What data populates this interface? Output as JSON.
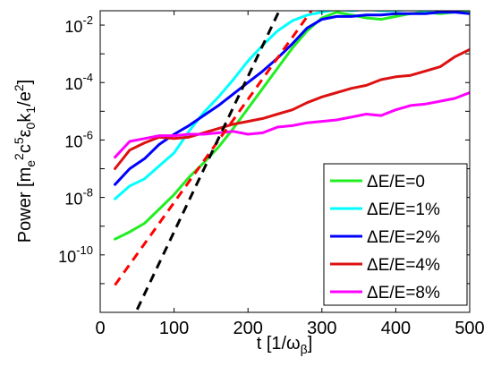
{
  "chart_data": {
    "type": "line",
    "xlabel": "t [1/ω_β]",
    "ylabel": "Power [m_e^2 c^5 ε_0 k_1/e^2]",
    "xlim": [
      0,
      500
    ],
    "ylim_log10": [
      -12,
      -1.5
    ],
    "yscale": "log",
    "x_ticks": [
      0,
      100,
      200,
      300,
      400,
      500
    ],
    "y_ticks": [
      {
        "exp": -10,
        "label": "10",
        "sup": "-10"
      },
      {
        "exp": -8,
        "label": "10",
        "sup": "-8"
      },
      {
        "exp": -6,
        "label": "10",
        "sup": "-6"
      },
      {
        "exp": -4,
        "label": "10",
        "sup": "-4"
      },
      {
        "exp": -2,
        "label": "10",
        "sup": "-2"
      }
    ],
    "legend_position": "lower-right",
    "series": [
      {
        "name": "ΔE/E=0",
        "color": "#22ee22",
        "points": [
          [
            20,
            -9.45
          ],
          [
            40,
            -9.2
          ],
          [
            60,
            -8.9
          ],
          [
            80,
            -8.4
          ],
          [
            100,
            -7.9
          ],
          [
            120,
            -7.3
          ],
          [
            140,
            -6.8
          ],
          [
            160,
            -6.25
          ],
          [
            180,
            -5.6
          ],
          [
            200,
            -4.9
          ],
          [
            220,
            -4.2
          ],
          [
            240,
            -3.5
          ],
          [
            260,
            -2.8
          ],
          [
            280,
            -2.2
          ],
          [
            300,
            -1.75
          ],
          [
            320,
            -1.55
          ],
          [
            340,
            -1.65
          ],
          [
            360,
            -1.75
          ],
          [
            380,
            -1.8
          ],
          [
            400,
            -1.7
          ],
          [
            420,
            -1.6
          ],
          [
            440,
            -1.55
          ],
          [
            460,
            -1.6
          ],
          [
            480,
            -1.55
          ],
          [
            500,
            -1.5
          ]
        ]
      },
      {
        "name": "ΔE/E=1%",
        "color": "#00ffff",
        "points": [
          [
            20,
            -8.05
          ],
          [
            40,
            -7.6
          ],
          [
            60,
            -7.35
          ],
          [
            80,
            -6.9
          ],
          [
            100,
            -6.45
          ],
          [
            120,
            -5.7
          ],
          [
            140,
            -5.05
          ],
          [
            160,
            -4.5
          ],
          [
            180,
            -3.9
          ],
          [
            200,
            -3.25
          ],
          [
            220,
            -2.7
          ],
          [
            240,
            -2.2
          ],
          [
            260,
            -1.85
          ],
          [
            280,
            -1.65
          ],
          [
            300,
            -1.55
          ],
          [
            320,
            -1.45
          ],
          [
            340,
            -1.5
          ],
          [
            360,
            -1.45
          ],
          [
            380,
            -1.5
          ],
          [
            400,
            -1.5
          ],
          [
            420,
            -1.45
          ],
          [
            440,
            -1.5
          ],
          [
            460,
            -1.45
          ],
          [
            480,
            -1.45
          ],
          [
            500,
            -1.4
          ]
        ]
      },
      {
        "name": "ΔE/E=2%",
        "color": "#0000ff",
        "points": [
          [
            20,
            -7.55
          ],
          [
            40,
            -7.0
          ],
          [
            60,
            -6.65
          ],
          [
            80,
            -6.15
          ],
          [
            100,
            -5.8
          ],
          [
            120,
            -5.5
          ],
          [
            140,
            -5.15
          ],
          [
            160,
            -4.8
          ],
          [
            180,
            -4.4
          ],
          [
            200,
            -4.0
          ],
          [
            220,
            -3.6
          ],
          [
            240,
            -3.15
          ],
          [
            260,
            -2.65
          ],
          [
            280,
            -2.1
          ],
          [
            300,
            -1.8
          ],
          [
            320,
            -1.7
          ],
          [
            340,
            -1.7
          ],
          [
            360,
            -1.65
          ],
          [
            380,
            -1.65
          ],
          [
            400,
            -1.6
          ],
          [
            420,
            -1.6
          ],
          [
            440,
            -1.6
          ],
          [
            460,
            -1.55
          ],
          [
            480,
            -1.55
          ],
          [
            500,
            -1.6
          ]
        ]
      },
      {
        "name": "ΔE/E=4%",
        "color": "#dd1111",
        "points": [
          [
            20,
            -7.0
          ],
          [
            40,
            -6.35
          ],
          [
            60,
            -6.1
          ],
          [
            80,
            -5.9
          ],
          [
            100,
            -5.95
          ],
          [
            120,
            -5.9
          ],
          [
            140,
            -5.75
          ],
          [
            160,
            -5.6
          ],
          [
            180,
            -5.45
          ],
          [
            200,
            -5.35
          ],
          [
            220,
            -5.25
          ],
          [
            240,
            -5.1
          ],
          [
            260,
            -4.95
          ],
          [
            280,
            -4.7
          ],
          [
            300,
            -4.5
          ],
          [
            320,
            -4.35
          ],
          [
            340,
            -4.2
          ],
          [
            360,
            -4.1
          ],
          [
            380,
            -3.9
          ],
          [
            400,
            -3.8
          ],
          [
            420,
            -3.75
          ],
          [
            440,
            -3.6
          ],
          [
            460,
            -3.45
          ],
          [
            480,
            -3.1
          ],
          [
            500,
            -2.85
          ]
        ]
      },
      {
        "name": "ΔE/E=8%",
        "color": "#ff00ff",
        "points": [
          [
            20,
            -6.6
          ],
          [
            40,
            -6.05
          ],
          [
            60,
            -5.95
          ],
          [
            80,
            -5.85
          ],
          [
            100,
            -5.85
          ],
          [
            120,
            -5.8
          ],
          [
            140,
            -5.8
          ],
          [
            160,
            -5.75
          ],
          [
            180,
            -5.7
          ],
          [
            200,
            -5.8
          ],
          [
            220,
            -5.75
          ],
          [
            240,
            -5.55
          ],
          [
            260,
            -5.5
          ],
          [
            280,
            -5.4
          ],
          [
            300,
            -5.35
          ],
          [
            320,
            -5.3
          ],
          [
            340,
            -5.2
          ],
          [
            360,
            -5.1
          ],
          [
            380,
            -5.15
          ],
          [
            400,
            -4.95
          ],
          [
            420,
            -4.8
          ],
          [
            440,
            -4.75
          ],
          [
            460,
            -4.65
          ],
          [
            480,
            -4.55
          ],
          [
            500,
            -4.35
          ]
        ]
      },
      {
        "color": "#ff0000",
        "dash": true,
        "points": [
          [
            20,
            -11.05
          ],
          [
            290,
            -1.35
          ]
        ]
      },
      {
        "color": "#000000",
        "dash": true,
        "points": [
          [
            50,
            -11.9
          ],
          [
            245,
            -1.35
          ]
        ]
      }
    ]
  }
}
